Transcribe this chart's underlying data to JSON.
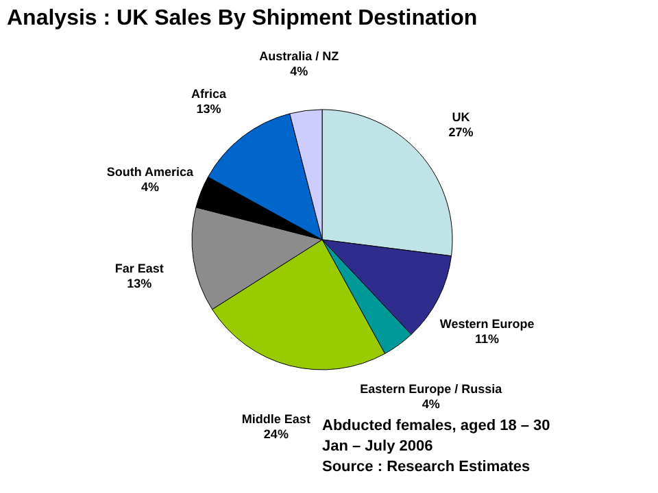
{
  "chart_data": {
    "type": "pie",
    "title": "Analysis : UK Sales By Shipment Destination",
    "categories": [
      "UK",
      "Western Europe",
      "Eastern Europe / Russia",
      "Middle East",
      "Far East",
      "South America",
      "Africa",
      "Australia / NZ"
    ],
    "values": [
      27,
      11,
      4,
      24,
      13,
      4,
      13,
      4
    ],
    "value_labels": [
      "27%",
      "11%",
      "4%",
      "24%",
      "13%",
      "4%",
      "13%",
      "4%"
    ],
    "colors": [
      "#bfe3e6",
      "#2e2c8c",
      "#009999",
      "#99cc00",
      "#8c8c8c",
      "#000000",
      "#0066cc",
      "#ccccff"
    ],
    "legend": false,
    "annotations": [
      "Abducted females, aged 18 – 30",
      "Jan – July  2006",
      "Source : Research Estimates"
    ]
  }
}
